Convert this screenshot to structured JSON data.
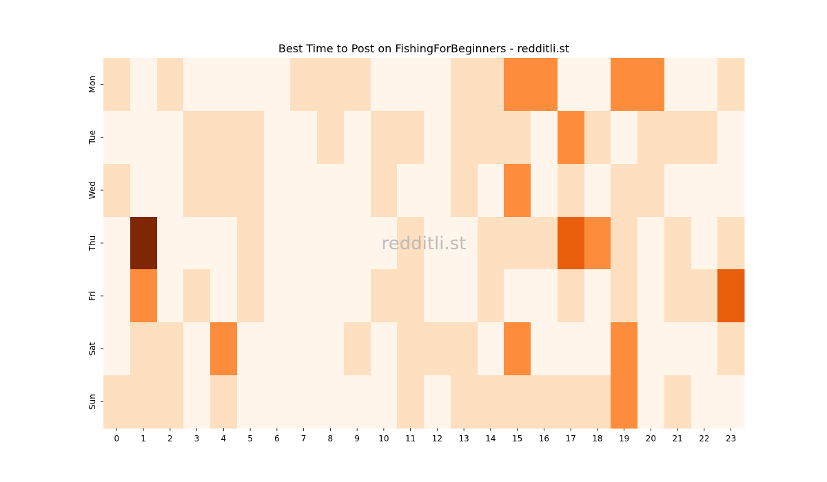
{
  "chart_data": {
    "type": "heatmap",
    "title": "Best Time to Post on FishingForBeginners - redditli.st",
    "watermark": "redditli.st",
    "xlabel": "",
    "ylabel": "",
    "x_categories": [
      "0",
      "1",
      "2",
      "3",
      "4",
      "5",
      "6",
      "7",
      "8",
      "9",
      "10",
      "11",
      "12",
      "13",
      "14",
      "15",
      "16",
      "17",
      "18",
      "19",
      "20",
      "21",
      "22",
      "23"
    ],
    "y_categories": [
      "Mon",
      "Tue",
      "Wed",
      "Thu",
      "Fri",
      "Sat",
      "Sun"
    ],
    "colormap": "Oranges",
    "value_range": [
      0,
      6
    ],
    "grid": false,
    "legend": "none",
    "values": [
      [
        1,
        0,
        1,
        0,
        0,
        0,
        0,
        1,
        1,
        1,
        0,
        0,
        0,
        1,
        1,
        3,
        3,
        0,
        0,
        3,
        3,
        0,
        0,
        1
      ],
      [
        0,
        0,
        0,
        1,
        1,
        1,
        0,
        0,
        1,
        0,
        1,
        1,
        0,
        1,
        1,
        1,
        0,
        3,
        1,
        0,
        1,
        1,
        1,
        0
      ],
      [
        1,
        0,
        0,
        1,
        1,
        1,
        0,
        0,
        0,
        0,
        1,
        0,
        0,
        1,
        0,
        3,
        0,
        1,
        0,
        1,
        1,
        0,
        0,
        0
      ],
      [
        0,
        6,
        0,
        0,
        0,
        1,
        0,
        0,
        0,
        0,
        0,
        1,
        0,
        0,
        1,
        1,
        1,
        4,
        3,
        1,
        0,
        1,
        0,
        1
      ],
      [
        0,
        3,
        0,
        1,
        0,
        1,
        0,
        0,
        0,
        0,
        1,
        1,
        0,
        0,
        1,
        0,
        0,
        1,
        0,
        1,
        0,
        1,
        1,
        4
      ],
      [
        0,
        1,
        1,
        0,
        3,
        0,
        0,
        0,
        0,
        1,
        0,
        1,
        1,
        1,
        0,
        3,
        0,
        0,
        0,
        3,
        0,
        0,
        0,
        1
      ],
      [
        1,
        1,
        1,
        0,
        1,
        0,
        0,
        0,
        0,
        0,
        0,
        1,
        0,
        1,
        1,
        1,
        1,
        1,
        1,
        3,
        0,
        1,
        0,
        0
      ]
    ]
  },
  "colors": {
    "level_0": "#fff5eb",
    "level_1": "#fdd0a2",
    "level_3": "#fd8d3c",
    "level_4": "#d94801",
    "level_6": "#7f2704",
    "text": "#000000",
    "watermark": "#b3b3b3"
  }
}
